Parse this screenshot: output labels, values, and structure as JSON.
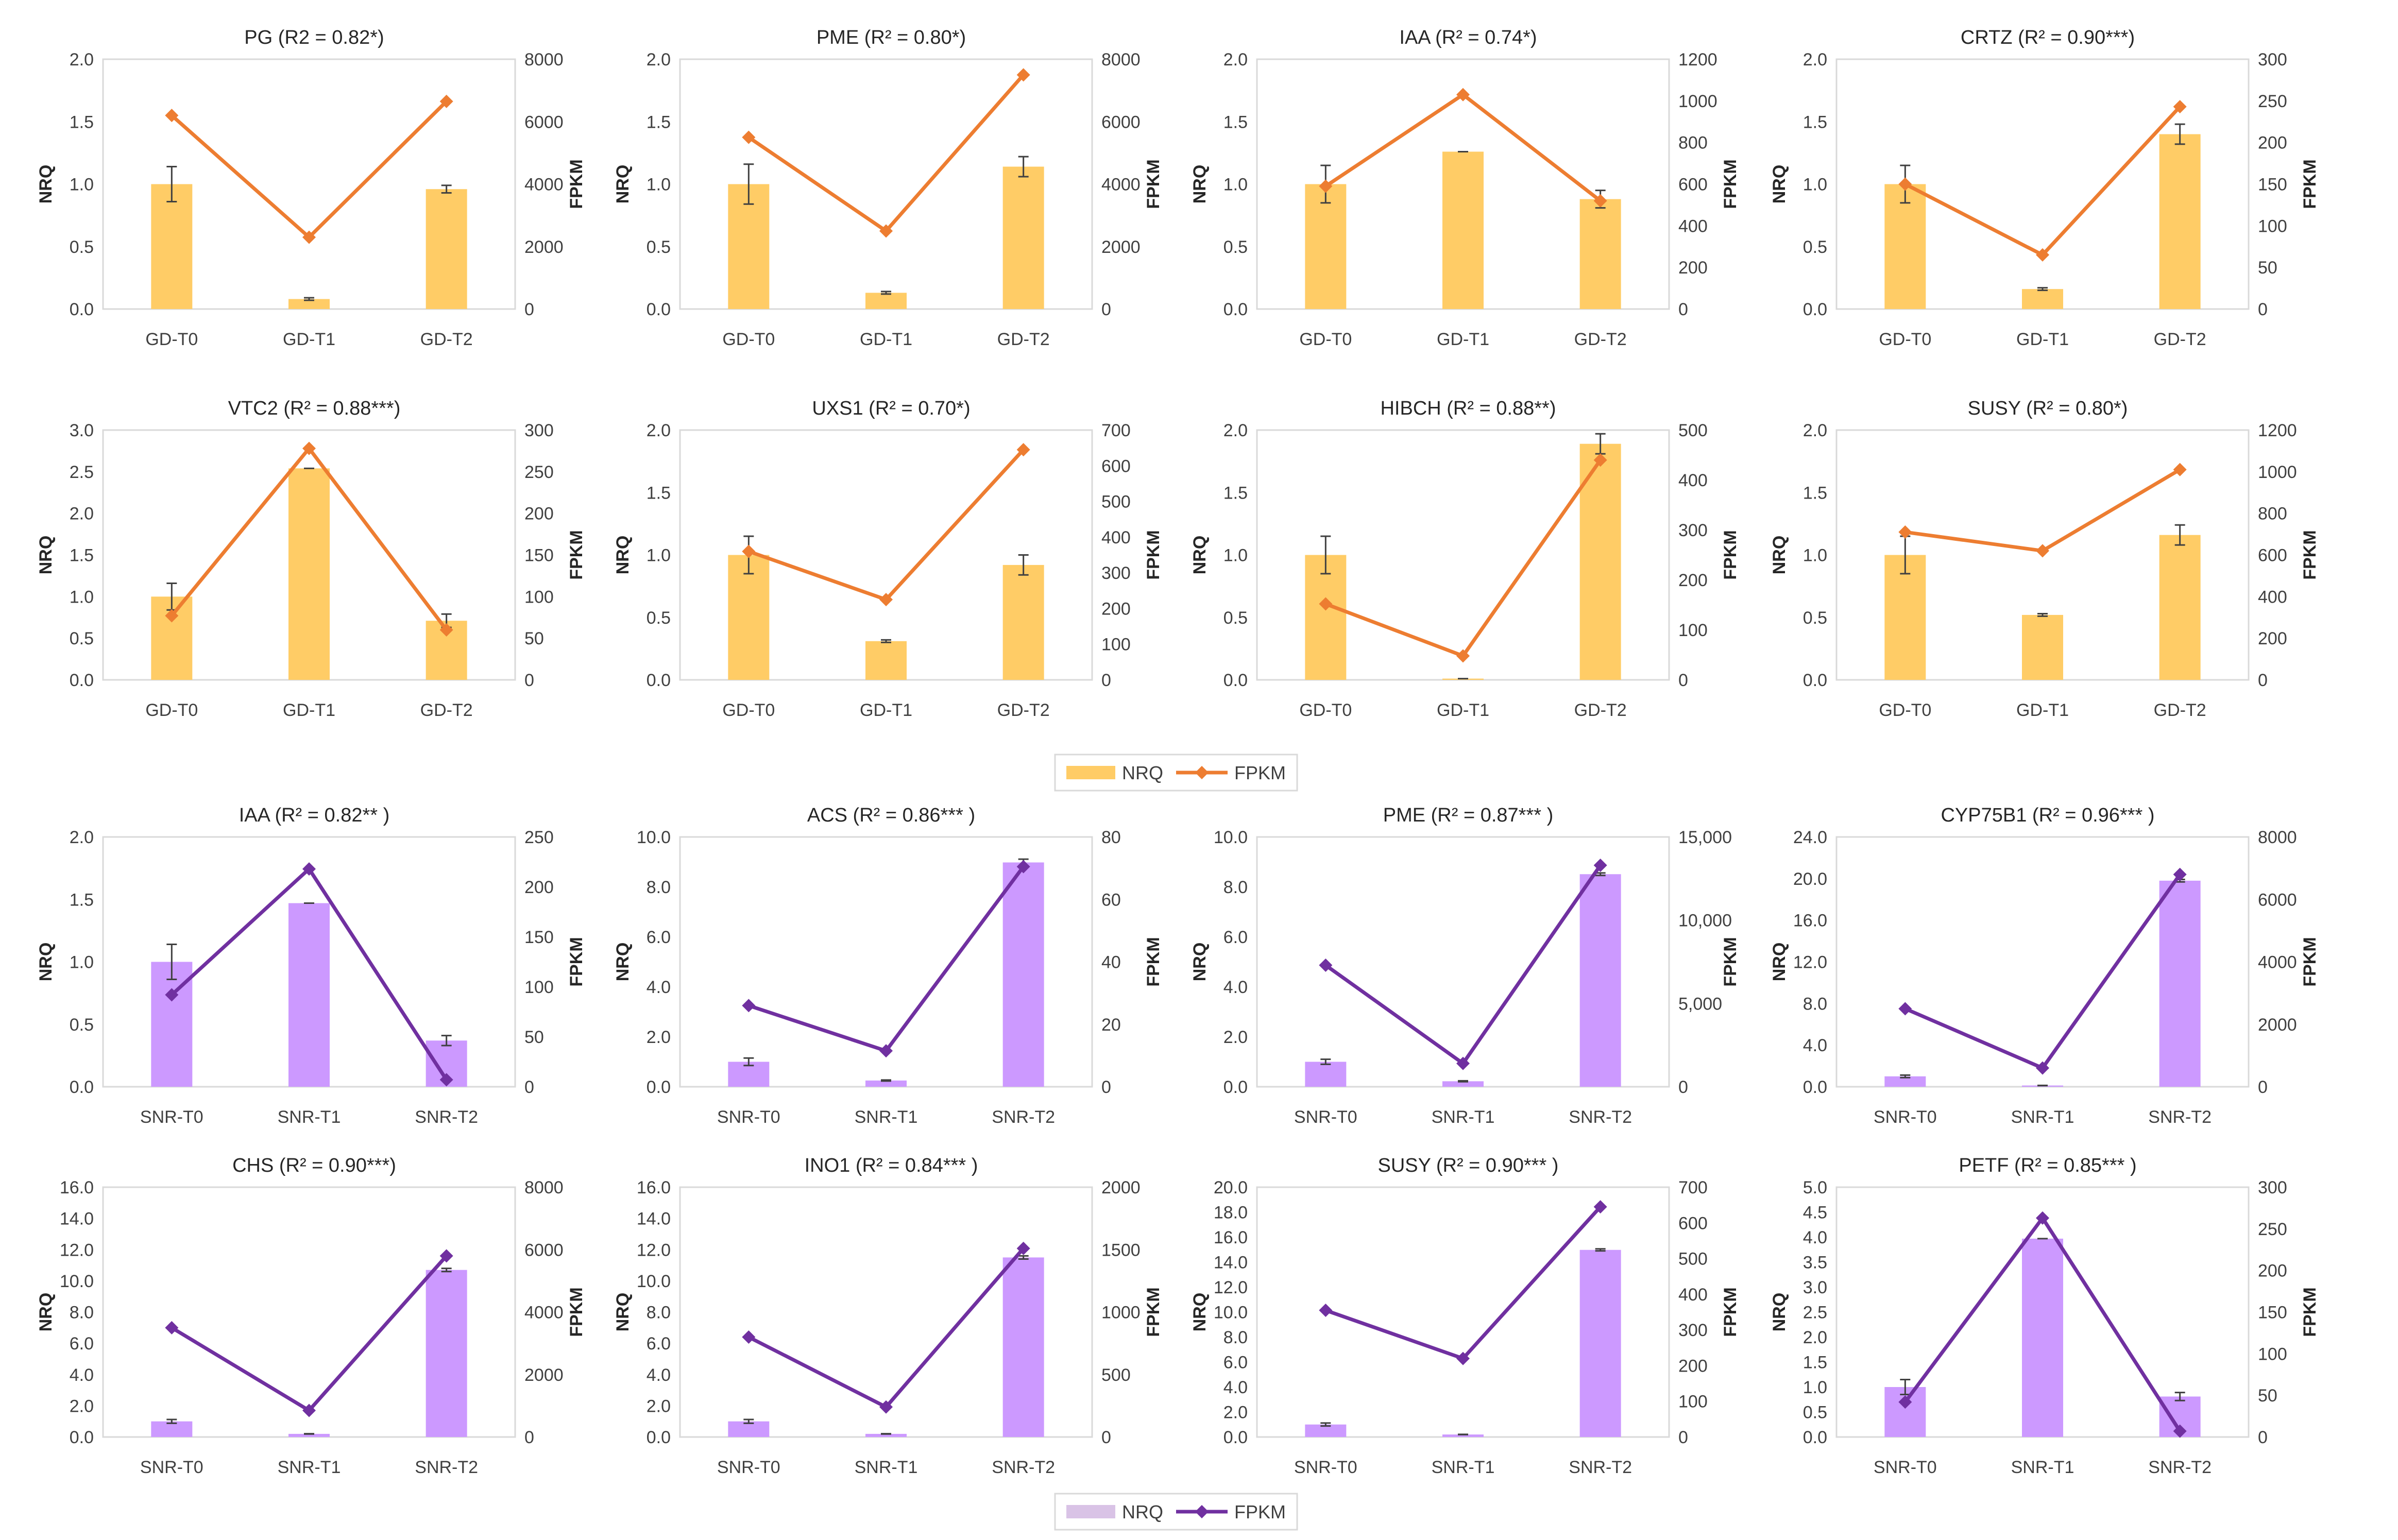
{
  "colors": {
    "gd_bar": "#FFCC66",
    "gd_line": "#ED7D31",
    "snr_bar": "#CC99FF",
    "snr_line": "#7030A0",
    "snr_legend_bar": "#D9C3E6",
    "frame": "#D9D9D9",
    "text": "#404040"
  },
  "legends": [
    {
      "bar_label": "NRQ",
      "line_label": "FPKM",
      "group": "gd"
    },
    {
      "bar_label": "NRQ",
      "line_label": "FPKM",
      "group": "snr"
    }
  ],
  "chart_data": [
    {
      "type": "bar+line",
      "group": "gd",
      "title": "PG (R2 = 0.82*)",
      "categories": [
        "GD-T0",
        "GD-T1",
        "GD-T2"
      ],
      "nrq": [
        1.0,
        0.08,
        0.96
      ],
      "nrq_err": [
        0.14,
        0.01,
        0.03
      ],
      "fpkm": [
        6200,
        2300,
        6650
      ],
      "ylabel": "NRQ",
      "y2label": "FPKM",
      "ylim": [
        0,
        2
      ],
      "yticks": [
        "0.0",
        "0.5",
        "1.0",
        "1.5",
        "2.0"
      ],
      "y2lim": [
        0,
        8000
      ],
      "y2ticks": [
        "0",
        "2000",
        "4000",
        "6000",
        "8000"
      ]
    },
    {
      "type": "bar+line",
      "group": "gd",
      "title": "PME (R² = 0.80*)",
      "categories": [
        "GD-T0",
        "GD-T1",
        "GD-T2"
      ],
      "nrq": [
        1.0,
        0.13,
        1.14
      ],
      "nrq_err": [
        0.16,
        0.01,
        0.08
      ],
      "fpkm": [
        5500,
        2500,
        7500
      ],
      "ylabel": "NRQ",
      "y2label": "FPKM",
      "ylim": [
        0,
        2
      ],
      "yticks": [
        "0.0",
        "0.5",
        "1.0",
        "1.5",
        "2.0"
      ],
      "y2lim": [
        0,
        8000
      ],
      "y2ticks": [
        "0",
        "2000",
        "4000",
        "6000",
        "8000"
      ]
    },
    {
      "type": "bar+line",
      "group": "gd",
      "title": "IAA (R² = 0.74*)",
      "categories": [
        "GD-T0",
        "GD-T1",
        "GD-T2"
      ],
      "nrq": [
        1.0,
        1.26,
        0.88
      ],
      "nrq_err": [
        0.15,
        0.0,
        0.07
      ],
      "fpkm": [
        590,
        1030,
        520
      ],
      "ylabel": "NRQ",
      "y2label": "FPKM",
      "ylim": [
        0,
        2
      ],
      "yticks": [
        "0.0",
        "0.5",
        "1.0",
        "1.5",
        "2.0"
      ],
      "y2lim": [
        0,
        1200
      ],
      "y2ticks": [
        "0",
        "200",
        "400",
        "600",
        "800",
        "1000",
        "1200"
      ]
    },
    {
      "type": "bar+line",
      "group": "gd",
      "title": "CRTZ (R² = 0.90***)",
      "categories": [
        "GD-T0",
        "GD-T1",
        "GD-T2"
      ],
      "nrq": [
        1.0,
        0.16,
        1.4
      ],
      "nrq_err": [
        0.15,
        0.01,
        0.08
      ],
      "fpkm": [
        150,
        65,
        243
      ],
      "ylabel": "NRQ",
      "y2label": "FPKM",
      "ylim": [
        0,
        2
      ],
      "yticks": [
        "0.0",
        "0.5",
        "1.0",
        "1.5",
        "2.0"
      ],
      "y2lim": [
        0,
        300
      ],
      "y2ticks": [
        "0",
        "50",
        "100",
        "150",
        "200",
        "250",
        "300"
      ]
    },
    {
      "type": "bar+line",
      "group": "gd",
      "title": "VTC2 (R² = 0.88***)",
      "categories": [
        "GD-T0",
        "GD-T1",
        "GD-T2"
      ],
      "nrq": [
        1.0,
        2.54,
        0.71
      ],
      "nrq_err": [
        0.16,
        0.0,
        0.08
      ],
      "fpkm": [
        77,
        278,
        60
      ],
      "ylabel": "NRQ",
      "y2label": "FPKM",
      "ylim": [
        0,
        3
      ],
      "yticks": [
        "0.0",
        "0.5",
        "1.0",
        "1.5",
        "2.0",
        "2.5",
        "3.0"
      ],
      "y2lim": [
        0,
        300
      ],
      "y2ticks": [
        "0",
        "50",
        "100",
        "150",
        "200",
        "250",
        "300"
      ]
    },
    {
      "type": "bar+line",
      "group": "gd",
      "title": "UXS1 (R² = 0.70*)",
      "categories": [
        "GD-T0",
        "GD-T1",
        "GD-T2"
      ],
      "nrq": [
        1.0,
        0.31,
        0.92
      ],
      "nrq_err": [
        0.15,
        0.01,
        0.08
      ],
      "fpkm": [
        360,
        225,
        645
      ],
      "ylabel": "NRQ",
      "y2label": "FPKM",
      "ylim": [
        0,
        2
      ],
      "yticks": [
        "0.0",
        "0.5",
        "1.0",
        "1.5",
        "2.0"
      ],
      "y2lim": [
        0,
        700
      ],
      "y2ticks": [
        "0",
        "100",
        "200",
        "300",
        "400",
        "500",
        "600",
        "700"
      ]
    },
    {
      "type": "bar+line",
      "group": "gd",
      "title": "HIBCH (R² = 0.88**)",
      "categories": [
        "GD-T0",
        "GD-T1",
        "GD-T2"
      ],
      "nrq": [
        1.0,
        0.01,
        1.89
      ],
      "nrq_err": [
        0.15,
        0.0,
        0.08
      ],
      "fpkm": [
        152,
        48,
        440
      ],
      "ylabel": "NRQ",
      "y2label": "FPKM",
      "ylim": [
        0,
        2
      ],
      "yticks": [
        "0.0",
        "0.5",
        "1.0",
        "1.5",
        "2.0"
      ],
      "y2lim": [
        0,
        500
      ],
      "y2ticks": [
        "0",
        "100",
        "200",
        "300",
        "400",
        "500"
      ]
    },
    {
      "type": "bar+line",
      "group": "gd",
      "title": "SUSY (R² = 0.80*)",
      "categories": [
        "GD-T0",
        "GD-T1",
        "GD-T2"
      ],
      "nrq": [
        1.0,
        0.52,
        1.16
      ],
      "nrq_err": [
        0.15,
        0.01,
        0.08
      ],
      "fpkm": [
        710,
        620,
        1010
      ],
      "ylabel": "NRQ",
      "y2label": "FPKM",
      "ylim": [
        0,
        2
      ],
      "yticks": [
        "0.0",
        "0.5",
        "1.0",
        "1.5",
        "2.0"
      ],
      "y2lim": [
        0,
        1200
      ],
      "y2ticks": [
        "0",
        "200",
        "400",
        "600",
        "800",
        "1000",
        "1200"
      ]
    },
    {
      "type": "bar+line",
      "group": "snr",
      "title": "IAA (R² = 0.82** )",
      "categories": [
        "SNR-T0",
        "SNR-T1",
        "SNR-T2"
      ],
      "nrq": [
        1.0,
        1.47,
        0.37
      ],
      "nrq_err": [
        0.14,
        0.0,
        0.04
      ],
      "fpkm": [
        92,
        218,
        7
      ],
      "ylabel": "NRQ",
      "y2label": "FPKM",
      "ylim": [
        0,
        2
      ],
      "yticks": [
        "0.0",
        "0.5",
        "1.0",
        "1.5",
        "2.0"
      ],
      "y2lim": [
        0,
        250
      ],
      "y2ticks": [
        "0",
        "50",
        "100",
        "150",
        "200",
        "250"
      ]
    },
    {
      "type": "bar+line",
      "group": "snr",
      "title": "ACS (R² = 0.86*** )",
      "categories": [
        "SNR-T0",
        "SNR-T1",
        "SNR-T2"
      ],
      "nrq": [
        1.0,
        0.25,
        8.98
      ],
      "nrq_err": [
        0.15,
        0.02,
        0.13
      ],
      "fpkm": [
        26,
        11.5,
        70.5
      ],
      "ylabel": "NRQ",
      "y2label": "FPKM",
      "ylim": [
        0,
        10
      ],
      "yticks": [
        "0.0",
        "2.0",
        "4.0",
        "6.0",
        "8.0",
        "10.0"
      ],
      "y2lim": [
        0,
        80
      ],
      "y2ticks": [
        "0",
        "20",
        "40",
        "60",
        "80"
      ]
    },
    {
      "type": "bar+line",
      "group": "snr",
      "title": "PME (R² = 0.87*** )",
      "categories": [
        "SNR-T0",
        "SNR-T1",
        "SNR-T2"
      ],
      "nrq": [
        1.0,
        0.22,
        8.51
      ],
      "nrq_err": [
        0.1,
        0.02,
        0.05
      ],
      "fpkm": [
        7300,
        1400,
        13300
      ],
      "ylabel": "NRQ",
      "y2label": "FPKM",
      "ylim": [
        0,
        10
      ],
      "yticks": [
        "0.0",
        "2.0",
        "4.0",
        "6.0",
        "8.0",
        "10.0"
      ],
      "y2lim": [
        0,
        15000
      ],
      "y2ticks": [
        "0",
        "5,000",
        "10,000",
        "15,000"
      ]
    },
    {
      "type": "bar+line",
      "group": "snr",
      "title": "CYP75B1 (R² = 0.96*** )",
      "categories": [
        "SNR-T0",
        "SNR-T1",
        "SNR-T2"
      ],
      "nrq": [
        1.0,
        0.12,
        19.8
      ],
      "nrq_err": [
        0.12,
        0.01,
        0.12
      ],
      "fpkm": [
        2500,
        600,
        6800
      ],
      "ylabel": "NRQ",
      "y2label": "FPKM",
      "ylim": [
        0,
        24
      ],
      "yticks": [
        "0.0",
        "4.0",
        "8.0",
        "12.0",
        "16.0",
        "20.0",
        "24.0"
      ],
      "y2lim": [
        0,
        8000
      ],
      "y2ticks": [
        "0",
        "2000",
        "4000",
        "6000",
        "8000"
      ]
    },
    {
      "type": "bar+line",
      "group": "snr",
      "title": "CHS (R² = 0.90***)",
      "categories": [
        "SNR-T0",
        "SNR-T1",
        "SNR-T2"
      ],
      "nrq": [
        1.0,
        0.2,
        10.7
      ],
      "nrq_err": [
        0.12,
        0.01,
        0.1
      ],
      "fpkm": [
        3500,
        850,
        5800
      ],
      "ylabel": "NRQ",
      "y2label": "FPKM",
      "ylim": [
        0,
        16
      ],
      "yticks": [
        "0.0",
        "2.0",
        "4.0",
        "6.0",
        "8.0",
        "10.0",
        "12.0",
        "14.0",
        "16.0"
      ],
      "y2lim": [
        0,
        8000
      ],
      "y2ticks": [
        "0",
        "2000",
        "4000",
        "6000",
        "8000"
      ]
    },
    {
      "type": "bar+line",
      "group": "snr",
      "title": "INO1 (R² = 0.84*** )",
      "categories": [
        "SNR-T0",
        "SNR-T1",
        "SNR-T2"
      ],
      "nrq": [
        1.0,
        0.2,
        11.5
      ],
      "nrq_err": [
        0.12,
        0.01,
        0.1
      ],
      "fpkm": [
        800,
        240,
        1510
      ],
      "ylabel": "NRQ",
      "y2label": "FPKM",
      "ylim": [
        0,
        16
      ],
      "yticks": [
        "0.0",
        "2.0",
        "4.0",
        "6.0",
        "8.0",
        "10.0",
        "12.0",
        "14.0",
        "16.0"
      ],
      "y2lim": [
        0,
        2000
      ],
      "y2ticks": [
        "0",
        "500",
        "1000",
        "1500",
        "2000"
      ]
    },
    {
      "type": "bar+line",
      "group": "snr",
      "title": "SUSY (R² = 0.90*** )",
      "categories": [
        "SNR-T0",
        "SNR-T1",
        "SNR-T2"
      ],
      "nrq": [
        1.0,
        0.2,
        14.98
      ],
      "nrq_err": [
        0.12,
        0.01,
        0.08
      ],
      "fpkm": [
        355,
        220,
        645
      ],
      "ylabel": "NRQ",
      "y2label": "FPKM",
      "ylim": [
        0,
        20
      ],
      "yticks": [
        "0.0",
        "2.0",
        "4.0",
        "6.0",
        "8.0",
        "10.0",
        "12.0",
        "14.0",
        "16.0",
        "18.0",
        "20.0"
      ],
      "y2lim": [
        0,
        700
      ],
      "y2ticks": [
        "0",
        "100",
        "200",
        "300",
        "400",
        "500",
        "600",
        "700"
      ]
    },
    {
      "type": "bar+line",
      "group": "snr",
      "title": "PETF (R² = 0.85*** )",
      "categories": [
        "SNR-T0",
        "SNR-T1",
        "SNR-T2"
      ],
      "nrq": [
        1.0,
        3.97,
        0.81
      ],
      "nrq_err": [
        0.15,
        0.0,
        0.08
      ],
      "fpkm": [
        42,
        263,
        7
      ],
      "ylabel": "NRQ",
      "y2label": "FPKM",
      "ylim": [
        0,
        5
      ],
      "yticks": [
        "0.0",
        "0.5",
        "1.0",
        "1.5",
        "2.0",
        "2.5",
        "3.0",
        "3.5",
        "4.0",
        "4.5",
        "5.0"
      ],
      "y2lim": [
        0,
        300
      ],
      "y2ticks": [
        "0",
        "50",
        "100",
        "150",
        "200",
        "250",
        "300"
      ]
    }
  ]
}
